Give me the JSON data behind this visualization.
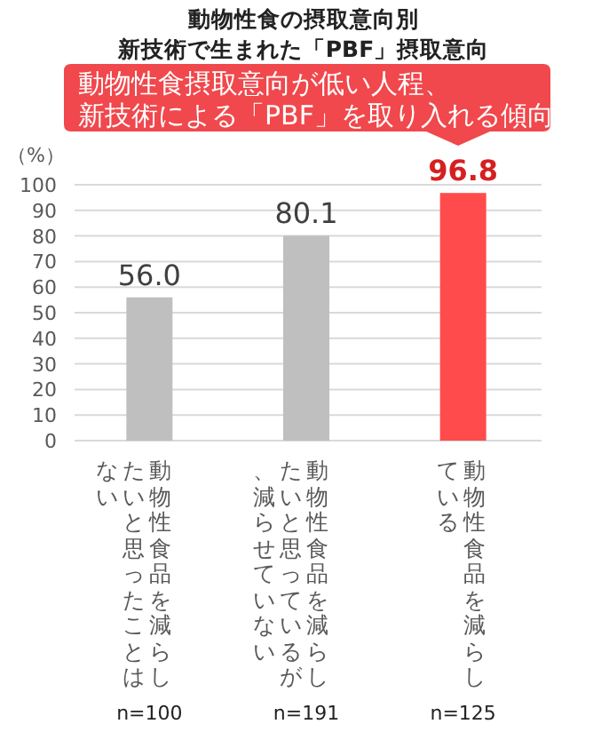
{
  "chart_data": {
    "type": "bar",
    "title": "動物性食の摂取意向別",
    "subtitle": "新技術で生まれた「PBF」摂取意向",
    "ylabel": "（%）",
    "categories": [
      "動物性食品を減らしたいと思ったことはない",
      "動物性食品を減らしたいと思っているが、減らせていない",
      "動物性食品を減らしている"
    ],
    "values": [
      56.0,
      80.1,
      96.8
    ],
    "value_labels": [
      "56.0",
      "80.1",
      "96.8"
    ],
    "colors": [
      "#bfbfbf",
      "#bfbfbf",
      "#ff4b4b"
    ],
    "ylim": [
      0,
      100
    ],
    "yticks": [
      0,
      10,
      20,
      30,
      40,
      50,
      60,
      70,
      80,
      90,
      100
    ],
    "grid": "y",
    "annotations": [
      "動物性食摂取意向が低い人程、",
      "新技術による「PBF」を取り入れる傾向",
      "n=100",
      "n=191",
      "n=125"
    ]
  }
}
